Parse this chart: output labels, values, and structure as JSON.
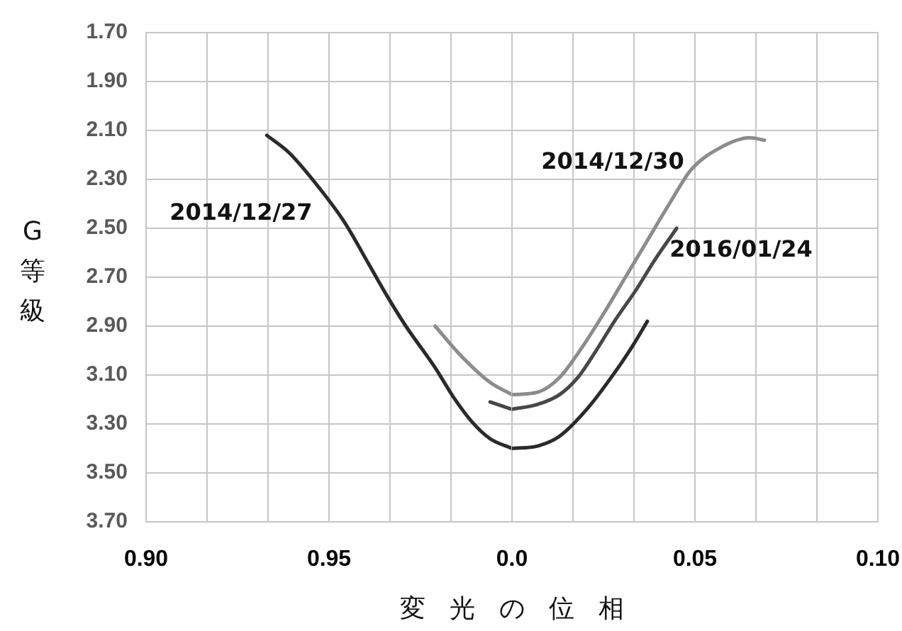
{
  "chart_data": [
    {
      "type": "line",
      "xlabel": "変光の位相",
      "ylabel": "G等級",
      "grid": true,
      "xlim": [
        0.9,
        1.0
      ],
      "xticks": [
        {
          "value": 0.9,
          "label": "0.90"
        },
        {
          "value": 0.9167,
          "label": null
        },
        {
          "value": 0.9333,
          "label": null
        },
        0.95,
        {
          "value": 0.9667,
          "label": null
        },
        {
          "value": 0.9833,
          "label": null
        }
      ],
      "ylim": [
        3.7,
        1.7
      ],
      "yticks": [
        {
          "value": 1.7,
          "label": "1.70"
        },
        {
          "value": 1.9,
          "label": "1.90"
        },
        {
          "value": 2.1,
          "label": "2.10"
        },
        {
          "value": 2.3,
          "label": "2.30"
        },
        {
          "value": 2.5,
          "label": "2.50"
        },
        {
          "value": 2.7,
          "label": "2.70"
        },
        {
          "value": 2.9,
          "label": "2.90"
        },
        {
          "value": 3.1,
          "label": "3.10"
        },
        {
          "value": 3.3,
          "label": "3.30"
        },
        {
          "value": 3.5,
          "label": "3.50"
        },
        {
          "value": 3.7,
          "label": "3.70"
        }
      ],
      "series": [
        {
          "name": "2014/12/27",
          "color": "#2b2b2b",
          "x": [
            0.933,
            0.939,
            0.946,
            0.954,
            0.961,
            0.966,
            0.971,
            0.979,
            0.984,
            0.989,
            0.994,
            1.0
          ],
          "values": [
            2.12,
            2.19,
            2.31,
            2.47,
            2.65,
            2.78,
            2.9,
            3.07,
            3.19,
            3.29,
            3.36,
            3.4
          ]
        },
        {
          "color": "#8c8c8c",
          "x": [
            0.979,
            0.986,
            0.994,
            1.0
          ],
          "values": [
            2.9,
            3.02,
            3.13,
            3.18
          ]
        },
        {
          "color": "#474747",
          "x": [
            0.994,
            0.998,
            1.0
          ],
          "values": [
            3.21,
            3.23,
            3.24
          ]
        }
      ]
    },
    {
      "type": "line",
      "grid": true,
      "tick_labels": "x",
      "xlim": [
        0.0,
        0.1
      ],
      "xticks": [
        {
          "value": 0,
          "label": "0.0"
        },
        {
          "value": 0.0167,
          "label": null
        },
        {
          "value": 0.0333,
          "label": null
        },
        0.05,
        {
          "value": 0.0667,
          "label": null
        },
        {
          "value": 0.0833,
          "label": null
        },
        {
          "value": 0.1,
          "label": "0.10"
        }
      ],
      "ylim": [
        3.7,
        1.7
      ],
      "yticks": [
        {
          "value": 1.7,
          "label": null
        },
        {
          "value": 1.9,
          "label": null
        },
        {
          "value": 2.1,
          "label": null
        },
        {
          "value": 2.3,
          "label": null
        },
        {
          "value": 2.5,
          "label": null
        },
        {
          "value": 2.7,
          "label": null
        },
        {
          "value": 2.9,
          "label": null
        },
        {
          "value": 3.1,
          "label": null
        },
        {
          "value": 3.3,
          "label": null
        },
        {
          "value": 3.5,
          "label": null
        },
        {
          "value": 3.7,
          "label": null
        }
      ],
      "series": [
        {
          "color": "#2b2b2b",
          "x": [
            0,
            0.007,
            0.013,
            0.021,
            0.029,
            0.033,
            0.037
          ],
          "values": [
            3.4,
            3.39,
            3.35,
            3.23,
            3.07,
            2.98,
            2.88
          ]
        },
        {
          "name": "2014/12/30",
          "color": "#8c8c8c",
          "x": [
            0,
            0.007,
            0.013,
            0.019,
            0.025,
            0.031,
            0.037,
            0.043,
            0.049,
            0.057,
            0.065,
            0.069
          ],
          "values": [
            3.18,
            3.17,
            3.11,
            2.99,
            2.85,
            2.7,
            2.55,
            2.4,
            2.26,
            2.17,
            2.13,
            2.14
          ]
        },
        {
          "name": "2016/01/24",
          "color": "#474747",
          "x": [
            0,
            0.007,
            0.013,
            0.018,
            0.023,
            0.028,
            0.034,
            0.039,
            0.045
          ],
          "values": [
            3.24,
            3.22,
            3.18,
            3.11,
            3.0,
            2.88,
            2.75,
            2.63,
            2.5
          ]
        }
      ]
    }
  ]
}
